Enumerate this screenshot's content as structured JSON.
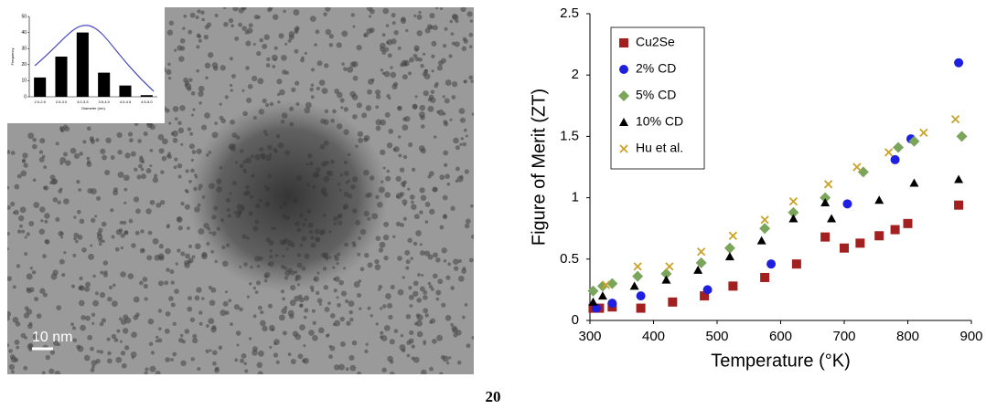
{
  "image": {
    "scale_label": "10 nm"
  },
  "page_number": "20",
  "chart_data": [
    {
      "type": "bar",
      "xlabel": "Diameter (nm)",
      "ylabel": "Frequency",
      "categories": [
        "2.0-2.5",
        "2.5-3.0",
        "3.0-3.5",
        "3.5-4.0",
        "4.0-4.5",
        "4.5-5.0"
      ],
      "values": [
        12,
        25,
        40,
        15,
        7,
        1
      ],
      "color": "#000000",
      "ylim": [
        0,
        50
      ],
      "yticks": [
        0,
        10,
        20,
        30,
        40,
        50
      ]
    },
    {
      "type": "scatter",
      "xlabel": "Temperature (°K)",
      "ylabel": "Figure of Merit (ZT)",
      "xlim": [
        300,
        900
      ],
      "xticks": [
        300,
        400,
        500,
        600,
        700,
        800,
        900
      ],
      "ylim": [
        0,
        2.5
      ],
      "yticks": [
        0,
        0.5,
        1,
        1.5,
        2,
        2.5
      ],
      "legend": "upper left",
      "series": [
        {
          "name": "Cu2Se",
          "color": "#a32020",
          "marker": "square",
          "x": [
            305,
            315,
            335,
            380,
            430,
            480,
            525,
            575,
            625,
            670,
            700,
            725,
            755,
            780,
            800,
            880
          ],
          "values": [
            0.1,
            0.1,
            0.11,
            0.1,
            0.15,
            0.2,
            0.28,
            0.35,
            0.46,
            0.68,
            0.59,
            0.63,
            0.69,
            0.74,
            0.79,
            0.94
          ]
        },
        {
          "name": "2% CD",
          "color": "#1f1fe0",
          "marker": "circle",
          "x": [
            310,
            335,
            380,
            485,
            585,
            705,
            780,
            805,
            880
          ],
          "values": [
            0.1,
            0.14,
            0.2,
            0.25,
            0.46,
            0.95,
            1.31,
            1.48,
            2.1
          ]
        },
        {
          "name": "5% CD",
          "color": "#7aa55a",
          "marker": "diamond",
          "x": [
            305,
            320,
            335,
            375,
            420,
            475,
            520,
            575,
            620,
            670,
            730,
            785,
            810,
            885
          ],
          "values": [
            0.24,
            0.28,
            0.3,
            0.36,
            0.38,
            0.47,
            0.59,
            0.75,
            0.88,
            1.0,
            1.21,
            1.41,
            1.46,
            1.5
          ]
        },
        {
          "name": "10% CD",
          "color": "#000000",
          "marker": "triangle",
          "x": [
            305,
            320,
            370,
            420,
            470,
            520,
            570,
            620,
            670,
            680,
            755,
            810,
            880
          ],
          "values": [
            0.15,
            0.2,
            0.28,
            0.33,
            0.41,
            0.52,
            0.65,
            0.83,
            0.96,
            0.83,
            0.98,
            1.12,
            1.15
          ]
        },
        {
          "name": "Hu et al.",
          "color": "#c9a227",
          "marker": "x",
          "x": [
            325,
            375,
            425,
            475,
            525,
            575,
            620,
            675,
            720,
            770,
            825,
            875
          ],
          "values": [
            0.29,
            0.44,
            0.44,
            0.56,
            0.69,
            0.82,
            0.97,
            1.11,
            1.25,
            1.37,
            1.53,
            1.64
          ]
        }
      ]
    }
  ]
}
